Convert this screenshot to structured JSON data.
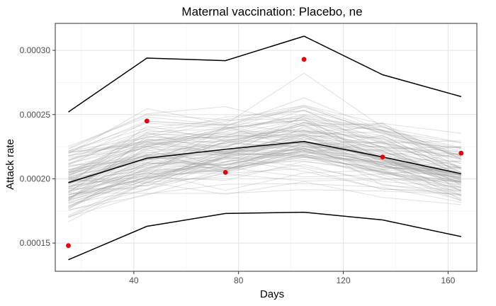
{
  "chart_data": {
    "type": "line",
    "title": "Maternal vaccination: Placebo, ne",
    "xlabel": "Days",
    "ylabel": "Attack rate",
    "xlim": [
      10,
      171
    ],
    "ylim": [
      0.000128,
      0.000321
    ],
    "x_ticks": [
      40,
      80,
      120,
      160
    ],
    "x_tick_labels": [
      "40",
      "80",
      "120",
      "160"
    ],
    "y_ticks": [
      0.00015,
      0.0002,
      0.00025,
      0.0003
    ],
    "y_tick_labels": [
      "0.00015",
      "0.00020",
      "0.00025",
      "0.00030"
    ],
    "x": [
      15,
      45,
      75,
      105,
      135,
      165
    ],
    "series": [
      {
        "role": "upper",
        "color": "#000000",
        "values": [
          0.000252,
          0.000294,
          0.000292,
          0.000311,
          0.000281,
          0.000264
        ]
      },
      {
        "role": "median",
        "color": "#000000",
        "values": [
          0.000197,
          0.000216,
          0.000223,
          0.000229,
          0.000217,
          0.000204
        ]
      },
      {
        "role": "lower",
        "color": "#000000",
        "values": [
          0.000137,
          0.000163,
          0.000173,
          0.000174,
          0.000168,
          0.000155
        ]
      }
    ],
    "observed": {
      "color": "#e8000b",
      "x": [
        15,
        45,
        75,
        105,
        135,
        165
      ],
      "values": [
        0.000148,
        0.000245,
        0.000205,
        0.000293,
        0.000217,
        0.00022
      ]
    },
    "simulations": {
      "count": 110,
      "color": "#a0a0a0",
      "seed": 7
    },
    "grid": true
  }
}
